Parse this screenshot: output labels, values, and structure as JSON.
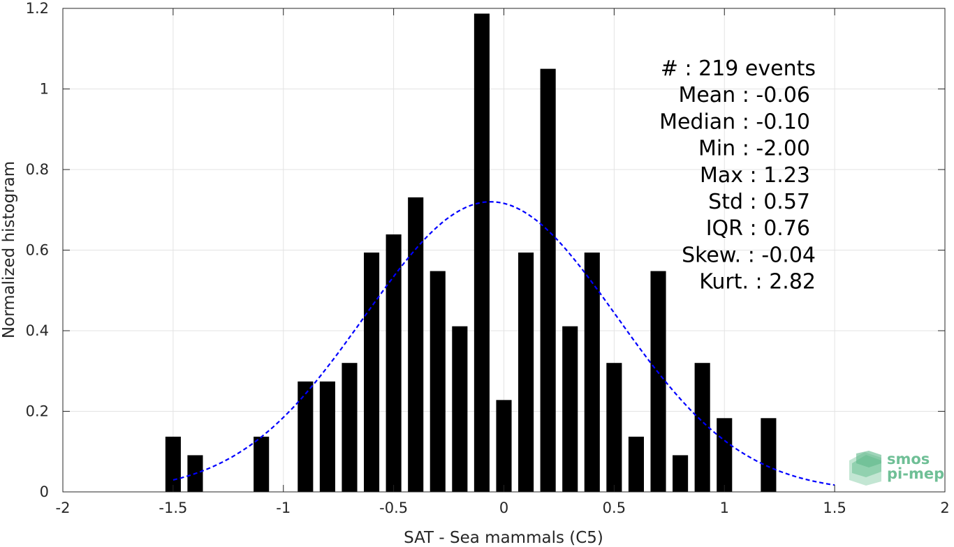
{
  "chart_data": {
    "type": "bar",
    "xlabel": "SAT - Sea mammals (C5)",
    "ylabel": "Normalized histogram",
    "xlim": [
      -2,
      2
    ],
    "ylim": [
      0,
      1.2
    ],
    "x_ticks": [
      -2,
      -1.5,
      -1,
      -0.5,
      0,
      0.5,
      1,
      1.5,
      2
    ],
    "x_tick_labels": [
      "-2",
      "-1.5",
      "-1",
      "-0.5",
      "0",
      "0.5",
      "1",
      "1.5",
      "2"
    ],
    "y_ticks": [
      0,
      0.2,
      0.4,
      0.6,
      0.8,
      1,
      1.2
    ],
    "y_tick_labels": [
      "0",
      "0.2",
      "0.4",
      "0.6",
      "0.8",
      "1",
      "1.2"
    ],
    "grid": true,
    "bar_width": 0.07,
    "bar_color": "#000000",
    "bars": [
      {
        "x": -1.5,
        "y": 0.137
      },
      {
        "x": -1.4,
        "y": 0.091
      },
      {
        "x": -1.1,
        "y": 0.137
      },
      {
        "x": -0.9,
        "y": 0.274
      },
      {
        "x": -0.8,
        "y": 0.274
      },
      {
        "x": -0.7,
        "y": 0.32
      },
      {
        "x": -0.6,
        "y": 0.594
      },
      {
        "x": -0.5,
        "y": 0.639
      },
      {
        "x": -0.4,
        "y": 0.731
      },
      {
        "x": -0.3,
        "y": 0.548
      },
      {
        "x": -0.2,
        "y": 0.411
      },
      {
        "x": -0.1,
        "y": 1.187
      },
      {
        "x": 0.0,
        "y": 0.228
      },
      {
        "x": 0.1,
        "y": 0.594
      },
      {
        "x": 0.2,
        "y": 1.05
      },
      {
        "x": 0.3,
        "y": 0.411
      },
      {
        "x": 0.4,
        "y": 0.594
      },
      {
        "x": 0.5,
        "y": 0.32
      },
      {
        "x": 0.6,
        "y": 0.137
      },
      {
        "x": 0.7,
        "y": 0.548
      },
      {
        "x": 0.8,
        "y": 0.091
      },
      {
        "x": 0.9,
        "y": 0.32
      },
      {
        "x": 1.0,
        "y": 0.183
      },
      {
        "x": 1.2,
        "y": 0.183
      }
    ],
    "fit_curve": {
      "style": "dashed",
      "color": "#0000ff",
      "mean": -0.06,
      "std": 0.57,
      "peak": 0.72,
      "x_range": [
        -1.5,
        1.5
      ]
    }
  },
  "stats": {
    "lines": [
      "#  : 219 events",
      "Mean : -0.06",
      "Median : -0.10",
      "Min : -2.00",
      "Max : 1.23",
      "Std : 0.57",
      "IQR : 0.76",
      "Skew. : -0.04",
      "Kurt. : 2.82"
    ]
  },
  "logo": {
    "line1": "smos",
    "line2": "pi-mep",
    "color": "#6fbf96"
  }
}
